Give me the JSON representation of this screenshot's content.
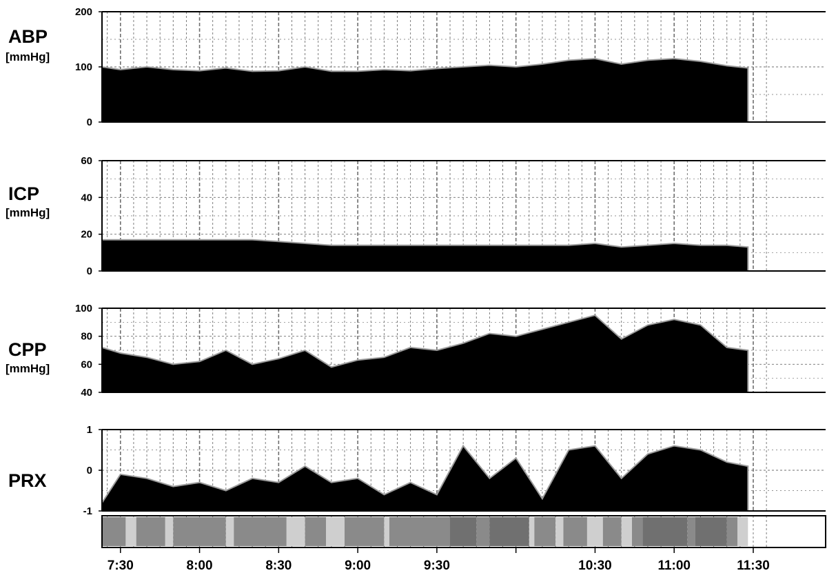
{
  "chart_data": [
    {
      "type": "area",
      "title": "ABP",
      "ylabel": "ABP",
      "unit": "[mmHg]",
      "ylim": [
        0,
        200
      ],
      "yticks": [
        "200",
        "100",
        "0"
      ],
      "grid": true,
      "x_range": [
        "7:23",
        "11:30"
      ],
      "x": [
        "7:23",
        "7:30",
        "7:40",
        "7:50",
        "8:00",
        "8:10",
        "8:20",
        "8:30",
        "8:40",
        "8:50",
        "9:00",
        "9:10",
        "9:20",
        "9:30",
        "9:40",
        "9:50",
        "10:00",
        "10:10",
        "10:20",
        "10:30",
        "10:40",
        "10:50",
        "11:00",
        "11:10",
        "11:20",
        "11:28"
      ],
      "values": [
        100,
        95,
        100,
        95,
        93,
        98,
        92,
        93,
        100,
        92,
        92,
        95,
        93,
        97,
        100,
        103,
        100,
        105,
        112,
        115,
        105,
        112,
        115,
        110,
        102,
        98
      ],
      "end_time": "11:28"
    },
    {
      "type": "area",
      "title": "ICP",
      "ylabel": "ICP",
      "unit": "[mmHg]",
      "ylim": [
        0,
        60
      ],
      "yticks": [
        "60",
        "40",
        "20",
        "0"
      ],
      "grid": true,
      "x_range": [
        "7:23",
        "11:30"
      ],
      "x": [
        "7:23",
        "7:30",
        "7:40",
        "7:50",
        "8:00",
        "8:10",
        "8:20",
        "8:30",
        "8:40",
        "8:50",
        "9:00",
        "9:10",
        "9:20",
        "9:30",
        "9:40",
        "9:50",
        "10:00",
        "10:10",
        "10:20",
        "10:30",
        "10:40",
        "10:50",
        "11:00",
        "11:10",
        "11:20",
        "11:28"
      ],
      "values": [
        17,
        17,
        17,
        17,
        17,
        17,
        17,
        16,
        15,
        14,
        14,
        14,
        14,
        14,
        14,
        14,
        14,
        14,
        14,
        15,
        13,
        14,
        15,
        14,
        14,
        13
      ],
      "end_time": "11:28"
    },
    {
      "type": "area",
      "title": "CPP",
      "ylabel": "CPP",
      "unit": "[mmHg]",
      "ylim": [
        40,
        100
      ],
      "yticks": [
        "100",
        "80",
        "60",
        "40"
      ],
      "grid": true,
      "x_range": [
        "7:23",
        "11:30"
      ],
      "x": [
        "7:23",
        "7:30",
        "7:40",
        "7:50",
        "8:00",
        "8:10",
        "8:20",
        "8:30",
        "8:40",
        "8:50",
        "9:00",
        "9:10",
        "9:20",
        "9:30",
        "9:40",
        "9:50",
        "10:00",
        "10:10",
        "10:20",
        "10:30",
        "10:40",
        "10:50",
        "11:00",
        "11:10",
        "11:20",
        "11:28"
      ],
      "values": [
        72,
        68,
        65,
        60,
        62,
        70,
        60,
        64,
        70,
        58,
        63,
        65,
        72,
        70,
        75,
        82,
        80,
        85,
        90,
        95,
        78,
        88,
        92,
        88,
        72,
        70
      ],
      "end_time": "11:28"
    },
    {
      "type": "area",
      "title": "PRX",
      "ylabel": "PRX",
      "unit": "",
      "ylim": [
        -1,
        1
      ],
      "yticks": [
        "1",
        "0",
        "-1"
      ],
      "grid": true,
      "x_range": [
        "7:23",
        "11:30"
      ],
      "x": [
        "7:23",
        "7:30",
        "7:40",
        "7:50",
        "8:00",
        "8:10",
        "8:20",
        "8:30",
        "8:40",
        "8:50",
        "9:00",
        "9:10",
        "9:20",
        "9:30",
        "9:40",
        "9:50",
        "10:00",
        "10:10",
        "10:20",
        "10:30",
        "10:40",
        "10:50",
        "11:00",
        "11:10",
        "11:20",
        "11:28"
      ],
      "values": [
        -0.8,
        -0.1,
        -0.2,
        -0.4,
        -0.3,
        -0.5,
        -0.2,
        -0.3,
        0.1,
        -0.3,
        -0.2,
        -0.6,
        -0.3,
        -0.6,
        0.6,
        -0.2,
        0.3,
        -0.7,
        0.5,
        0.6,
        -0.2,
        0.4,
        0.6,
        0.5,
        0.2,
        0.1
      ],
      "end_time": "11:28"
    }
  ],
  "status_bar": {
    "label": "",
    "segments": [
      {
        "start": "7:23",
        "end": "7:32",
        "state": "mid"
      },
      {
        "start": "7:32",
        "end": "7:36",
        "state": "light"
      },
      {
        "start": "7:36",
        "end": "7:47",
        "state": "mid"
      },
      {
        "start": "7:47",
        "end": "7:50",
        "state": "light"
      },
      {
        "start": "7:50",
        "end": "8:10",
        "state": "mid"
      },
      {
        "start": "8:10",
        "end": "8:13",
        "state": "light"
      },
      {
        "start": "8:13",
        "end": "8:33",
        "state": "mid"
      },
      {
        "start": "8:33",
        "end": "8:40",
        "state": "light"
      },
      {
        "start": "8:40",
        "end": "8:48",
        "state": "mid"
      },
      {
        "start": "8:48",
        "end": "8:55",
        "state": "light"
      },
      {
        "start": "8:55",
        "end": "9:10",
        "state": "mid"
      },
      {
        "start": "9:10",
        "end": "9:12",
        "state": "light"
      },
      {
        "start": "9:12",
        "end": "9:35",
        "state": "mid"
      },
      {
        "start": "9:35",
        "end": "9:45",
        "state": "dark"
      },
      {
        "start": "9:45",
        "end": "9:50",
        "state": "mid"
      },
      {
        "start": "9:50",
        "end": "10:05",
        "state": "dark"
      },
      {
        "start": "10:05",
        "end": "10:07",
        "state": "light"
      },
      {
        "start": "10:07",
        "end": "10:15",
        "state": "mid"
      },
      {
        "start": "10:15",
        "end": "10:18",
        "state": "light"
      },
      {
        "start": "10:18",
        "end": "10:27",
        "state": "mid"
      },
      {
        "start": "10:27",
        "end": "10:33",
        "state": "light"
      },
      {
        "start": "10:33",
        "end": "10:40",
        "state": "mid"
      },
      {
        "start": "10:40",
        "end": "10:44",
        "state": "light"
      },
      {
        "start": "10:44",
        "end": "10:48",
        "state": "mid"
      },
      {
        "start": "10:48",
        "end": "11:05",
        "state": "dark"
      },
      {
        "start": "11:05",
        "end": "11:08",
        "state": "mid"
      },
      {
        "start": "11:08",
        "end": "11:20",
        "state": "dark"
      },
      {
        "start": "11:20",
        "end": "11:24",
        "state": "mid"
      },
      {
        "start": "11:24",
        "end": "11:28",
        "state": "light"
      }
    ]
  },
  "x_axis": {
    "ticks": [
      "7:30",
      "8:00",
      "8:30",
      "9:00",
      "9:30",
      "10:30",
      "11:00",
      "11:30"
    ],
    "unlabeled_tick": "10:00"
  },
  "colors": {
    "fill": "#000000",
    "edge": "#9a9a9a",
    "grid": "#6e6e6e",
    "status_mid": "#8a8a8a",
    "status_light": "#cfcfcf",
    "status_dark": "#707070"
  }
}
